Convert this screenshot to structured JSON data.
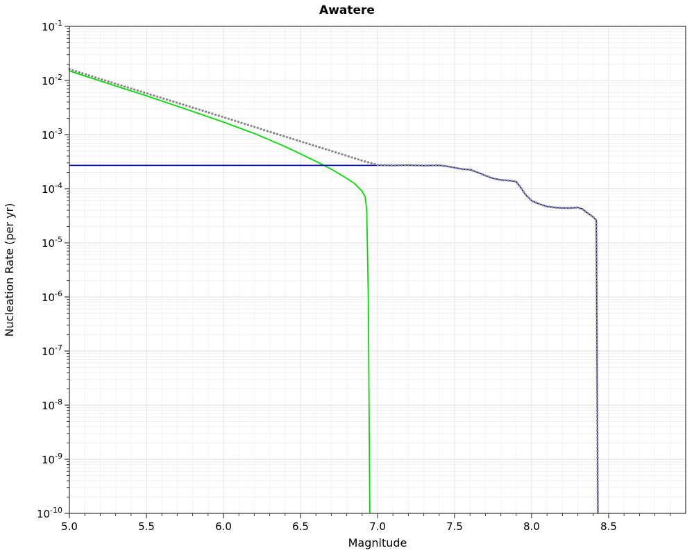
{
  "title": "Awatere",
  "chart_data": {
    "type": "line",
    "title": "Awatere",
    "xlabel": "Magnitude",
    "ylabel": "Nucleation Rate (per yr)",
    "xlim": [
      5.0,
      9.0
    ],
    "ylim_log10": [
      -10,
      -1
    ],
    "y_scale": "log",
    "grid": true,
    "legend": false,
    "x_ticks": {
      "values": [
        5.0,
        5.5,
        6.0,
        6.5,
        7.0,
        7.5,
        8.0,
        8.5
      ],
      "labels": [
        "5.0",
        "5.5",
        "6.0",
        "6.5",
        "7.0",
        "7.5",
        "8.0",
        "8.5"
      ]
    },
    "y_ticks": {
      "exponents": [
        -1,
        -2,
        -3,
        -4,
        -5,
        -6,
        -7,
        -8,
        -9,
        -10
      ],
      "base": "10"
    },
    "series": [
      {
        "name": "green-solid-line",
        "color": "#00dd00",
        "style": "solid",
        "width": 1.8,
        "x": [
          5.0,
          5.25,
          5.5,
          5.75,
          6.0,
          6.2,
          6.4,
          6.5,
          6.6,
          6.7,
          6.8,
          6.85,
          6.9,
          6.92,
          6.93,
          6.94,
          6.95
        ],
        "y": [
          0.015,
          0.0088,
          0.0052,
          0.003,
          0.0017,
          0.00105,
          0.0006,
          0.00044,
          0.00032,
          0.00023,
          0.000155,
          0.000125,
          9e-05,
          7e-05,
          4e-05,
          1e-06,
          1e-10
        ]
      },
      {
        "name": "blue-solid-line",
        "color": "#0000cc",
        "style": "solid",
        "width": 1.8,
        "x": [
          5.0,
          7.0,
          7.1,
          7.2,
          7.3,
          7.4,
          7.45,
          7.5,
          7.55,
          7.6,
          7.65,
          7.7,
          7.75,
          7.8,
          7.85,
          7.9,
          7.93,
          7.96,
          8.0,
          8.05,
          8.1,
          8.15,
          8.2,
          8.25,
          8.3,
          8.33,
          8.36,
          8.4,
          8.42,
          8.43
        ],
        "y": [
          0.00027,
          0.00027,
          0.000268,
          0.000272,
          0.000267,
          0.00027,
          0.00026,
          0.000245,
          0.00023,
          0.000225,
          0.0002,
          0.000175,
          0.000155,
          0.000145,
          0.000142,
          0.000135,
          0.000105,
          7.8e-05,
          6e-05,
          5.2e-05,
          4.7e-05,
          4.5e-05,
          4.4e-05,
          4.4e-05,
          4.5e-05,
          4.2e-05,
          3.6e-05,
          3e-05,
          2.6e-05,
          1e-10
        ]
      },
      {
        "name": "gray-dotted-line",
        "color": "#8a8a8a",
        "style": "dotted",
        "width": 3.2,
        "x": [
          5.0,
          5.25,
          5.5,
          5.75,
          6.0,
          6.25,
          6.5,
          6.75,
          6.9,
          7.0,
          7.1,
          7.2,
          7.3,
          7.4,
          7.45,
          7.5,
          7.55,
          7.6,
          7.65,
          7.7,
          7.75,
          7.8,
          7.85,
          7.9,
          7.93,
          7.96,
          8.0,
          8.05,
          8.1,
          8.15,
          8.2,
          8.25,
          8.3,
          8.33,
          8.36,
          8.4,
          8.42,
          8.43
        ],
        "y": [
          0.0162,
          0.0096,
          0.0058,
          0.0035,
          0.0021,
          0.00125,
          0.00075,
          0.00045,
          0.00033,
          0.000275,
          0.00027,
          0.000272,
          0.000268,
          0.00027,
          0.00026,
          0.000245,
          0.00023,
          0.000225,
          0.0002,
          0.000175,
          0.000155,
          0.000145,
          0.000142,
          0.000135,
          0.000105,
          7.8e-05,
          6e-05,
          5.2e-05,
          4.7e-05,
          4.5e-05,
          4.4e-05,
          4.4e-05,
          4.5e-05,
          4.2e-05,
          3.6e-05,
          3e-05,
          2.6e-05,
          1e-10
        ]
      }
    ]
  }
}
